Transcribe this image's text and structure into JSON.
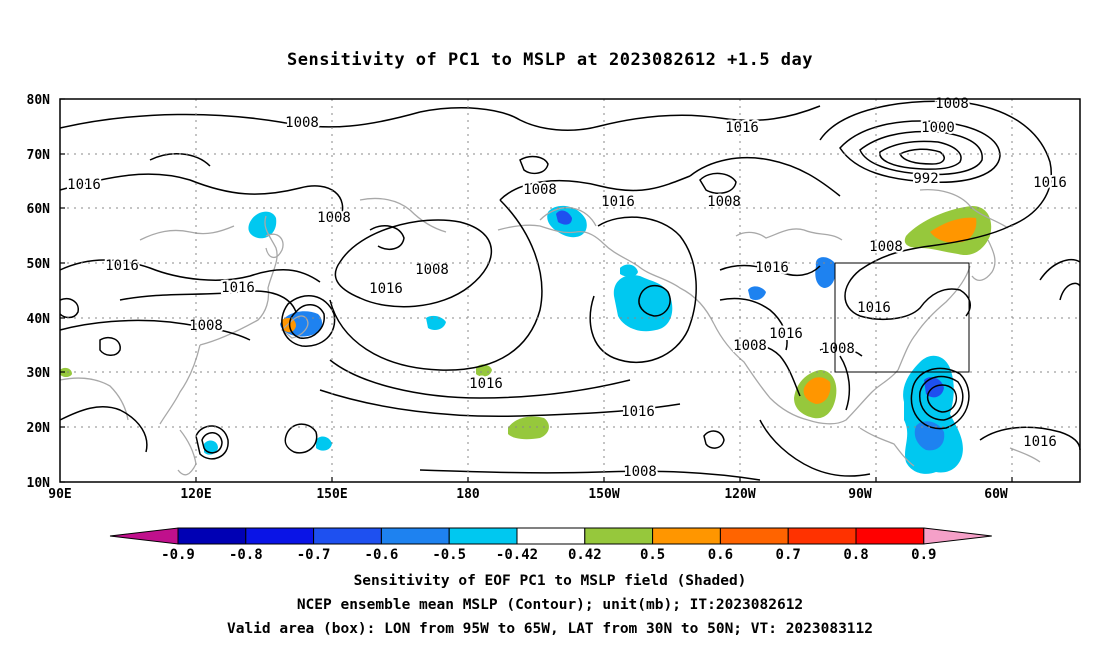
{
  "title": "Sensitivity of PC1 to MSLP at 2023082612 +1.5 day",
  "lat_labels": [
    "80N",
    "70N",
    "60N",
    "50N",
    "40N",
    "30N",
    "20N",
    "10N"
  ],
  "lon_labels": [
    "90E",
    "120E",
    "150E",
    "180",
    "150W",
    "120W",
    "90W",
    "60W"
  ],
  "contour_labels": [
    "1008",
    "1016",
    "1008",
    "1016",
    "1000",
    "992",
    "1016",
    "1016",
    "1008",
    "1008",
    "1016",
    "1008",
    "1016",
    "1016",
    "1008",
    "1016",
    "1008",
    "1016",
    "1008",
    "1016",
    "1016",
    "1016",
    "1008",
    "1016",
    "1008"
  ],
  "colorbar": {
    "labels": [
      "-0.9",
      "-0.8",
      "-0.7",
      "-0.6",
      "-0.5",
      "-0.42",
      "0.42",
      "0.5",
      "0.6",
      "0.7",
      "0.8",
      "0.9"
    ],
    "colors": [
      "#c0108c",
      "#0000b4",
      "#0a14e6",
      "#1e50f0",
      "#1e82f0",
      "#00c8f0",
      "#ffffff",
      "#96c83c",
      "#ff9600",
      "#ff6400",
      "#ff3200",
      "#ff0000",
      "#f5a0c8"
    ]
  },
  "captions": [
    "Sensitivity of EOF PC1 to MSLP field (Shaded)",
    "NCEP ensemble mean MSLP (Contour); unit(mb); IT:2023082612",
    "Valid area (box): LON from 95W to 65W, LAT from 30N to 50N; VT: 2023083112"
  ]
}
